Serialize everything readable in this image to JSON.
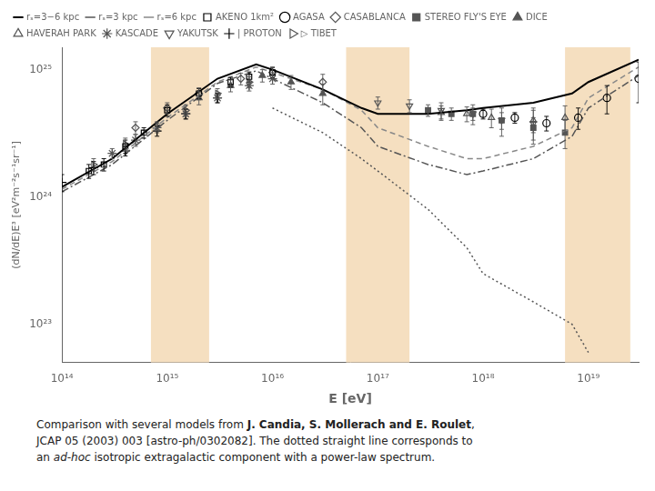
{
  "chart_data": {
    "type": "line",
    "xlabel": "E [eV]",
    "ylabel": "(dN/dE)E³ [eV²m⁻²s⁻¹sr⁻¹]",
    "log": true,
    "grid": false,
    "legend": "top",
    "xlim": [
      100000000000000.0,
      3e+19
    ],
    "ylim": [
      5e+22,
      1.5e+25
    ],
    "xticks": [
      {
        "value": 100000000000000.0,
        "label": "10¹⁴"
      },
      {
        "value": 1000000000000000.0,
        "label": "10¹⁵"
      },
      {
        "value": 1e+16,
        "label": "10¹⁶"
      },
      {
        "value": 1e+17,
        "label": "10¹⁷"
      },
      {
        "value": 1e+18,
        "label": "10¹⁸"
      },
      {
        "value": 1e+19,
        "label": "10¹⁹"
      }
    ],
    "yticks": [
      {
        "value": 1e+23,
        "label": "10²³"
      },
      {
        "value": 1e+24,
        "label": "10²⁴"
      },
      {
        "value": 1e+25,
        "label": "10²⁵"
      }
    ],
    "shaded_bands": [
      [
        700000000000000.0,
        2500000000000000.0
      ],
      [
        5e+16,
        2e+17
      ],
      [
        6e+18,
        2.5e+19
      ]
    ],
    "band_color": "#f5dfc0",
    "series": [
      {
        "name": "rₛ=3−6 kpc",
        "type": "line",
        "line_style": "solid",
        "color": "#000000",
        "x": [
          100000000000000.0,
          300000000000000.0,
          1000000000000000.0,
          3000000000000000.0,
          7000000000000000.0,
          1e+16,
          3e+16,
          7e+16,
          1e+17,
          3e+17,
          7e+17,
          1e+18,
          3e+18,
          7e+18,
          1e+19,
          3e+19
        ],
        "values": [
          1.2e+24,
          2e+24,
          4.5e+24,
          8.5e+24,
          1.1e+25,
          1e+25,
          7e+24,
          5e+24,
          4.5e+24,
          4.5e+24,
          4.8e+24,
          5e+24,
          5.5e+24,
          6.5e+24,
          8e+24,
          1.2e+25
        ]
      },
      {
        "name": "rₛ=3 kpc",
        "type": "line",
        "line_style": "dashdot",
        "color": "#555555",
        "x": [
          100000000000000.0,
          300000000000000.0,
          1000000000000000.0,
          3000000000000000.0,
          7000000000000000.0,
          1e+16,
          3e+16,
          7e+16,
          1e+17,
          3e+17,
          7e+17,
          1e+18,
          3e+18,
          7e+18,
          1e+19,
          3e+19
        ],
        "values": [
          1.1e+24,
          1.8e+24,
          4e+24,
          7.8e+24,
          9.8e+24,
          8.5e+24,
          5.5e+24,
          3.5e+24,
          2.5e+24,
          1.8e+24,
          1.5e+24,
          1.6e+24,
          2e+24,
          3e+24,
          5e+24,
          9e+24
        ]
      },
      {
        "name": "rₛ=6 kpc",
        "type": "line",
        "line_style": "dashed",
        "color": "#888888",
        "x": [
          100000000000000.0,
          300000000000000.0,
          1000000000000000.0,
          3000000000000000.0,
          7000000000000000.0,
          1e+16,
          3e+16,
          7e+16,
          1e+17,
          3e+17,
          7e+17,
          1e+18,
          3e+18,
          7e+18,
          1e+19,
          3e+19
        ],
        "values": [
          1.15e+24,
          1.9e+24,
          4.2e+24,
          8e+24,
          1.05e+25,
          9.5e+24,
          7e+24,
          4.8e+24,
          3.5e+24,
          2.5e+24,
          2e+24,
          2e+24,
          2.5e+24,
          3.5e+24,
          6e+24,
          1.05e+25
        ]
      },
      {
        "type": "line",
        "line_style": "dotted",
        "color": "#555555",
        "x": [
          1e+16,
          3e+16,
          7e+16,
          1e+17,
          3e+17,
          7e+17,
          1e+18,
          3e+18,
          7e+18,
          1e+19
        ],
        "values": [
          5e+24,
          3.2e+24,
          2e+24,
          1.6e+24,
          8e+23,
          4e+23,
          2.5e+23,
          1.5e+23,
          1e+23,
          6e+22
        ]
      },
      {
        "name": "AKENO 1km²",
        "type": "scatter",
        "marker": "square_open",
        "color": "#000000",
        "x": [
          180000000000000.0,
          250000000000000.0,
          400000000000000.0,
          600000000000000.0,
          1000000000000000.0,
          2000000000000000.0,
          4000000000000000.0,
          6000000000000000.0,
          1e+16
        ],
        "values": [
          1.6e+24,
          1.8e+24,
          2.5e+24,
          3.2e+24,
          4.8e+24,
          6.5e+24,
          8e+24,
          8.8e+24,
          9.5e+24
        ],
        "yerr": [
          2e+23,
          2e+23,
          3e+23,
          3e+23,
          5e+23,
          6e+23,
          7e+23,
          8e+23,
          9e+23
        ]
      },
      {
        "name": "AGASA",
        "type": "scatter",
        "marker": "circle_open",
        "color": "#000000",
        "x": [
          1e+18,
          2e+18,
          4e+18,
          8e+18,
          1.5e+19,
          3e+19
        ],
        "values": [
          4.5e+24,
          4.2e+24,
          3.8e+24,
          4.2e+24,
          6e+24,
          8.5e+24
        ],
        "yerr": [
          4e+23,
          4e+23,
          5e+23,
          8e+23,
          1.5e+24,
          3e+24
        ]
      },
      {
        "name": "CASABLANCA",
        "type": "scatter",
        "marker": "diamond_open",
        "color": "#555555",
        "x": [
          500000000000000.0,
          1000000000000000.0,
          2000000000000000.0,
          5000000000000000.0,
          1e+16,
          3e+16
        ],
        "values": [
          3.5e+24,
          5e+24,
          6.5e+24,
          8.5e+24,
          9.5e+24,
          8e+24
        ],
        "yerr": [
          4e+23,
          5e+23,
          7e+23,
          9e+23,
          1e+24,
          1.2e+24
        ]
      },
      {
        "name": "STEREO FLY'S EYE",
        "type": "scatter",
        "marker": "square",
        "color": "#555555",
        "x": [
          3e+17,
          5e+17,
          8e+17,
          1.5e+18,
          3e+18,
          6e+18
        ],
        "values": [
          4.8e+24,
          4.5e+24,
          4.5e+24,
          4e+24,
          3.5e+24,
          3.2e+24
        ],
        "yerr": [
          5e+23,
          5e+23,
          5e+23,
          6e+23,
          7e+23,
          8e+23
        ]
      },
      {
        "name": "DICE",
        "type": "scatter",
        "marker": "triangle",
        "color": "#555555",
        "x": [
          2000000000000000.0,
          4000000000000000.0,
          8000000000000000.0,
          1.5e+16,
          3e+16
        ],
        "values": [
          6e+24,
          7.5e+24,
          9e+24,
          8e+24,
          6.5e+24
        ],
        "yerr": [
          7e+23,
          8e+23,
          1e+24,
          1e+24,
          1.2e+24
        ]
      },
      {
        "name": "HAVERAH PARK",
        "type": "scatter",
        "marker": "triangle_open",
        "color": "#555555",
        "x": [
          4e+17,
          7e+17,
          1.2e+18,
          3e+18,
          6e+18
        ],
        "values": [
          4.6e+24,
          4.5e+24,
          4.2e+24,
          4e+24,
          4.2e+24
        ],
        "yerr": [
          6e+23,
          6e+23,
          7e+23,
          8e+23,
          1e+24
        ]
      },
      {
        "name": "KASCADE",
        "type": "scatter",
        "marker": "star",
        "color": "#555555",
        "x": [
          300000000000000.0,
          500000000000000.0,
          800000000000000.0,
          1500000000000000.0,
          3000000000000000.0,
          6000000000000000.0,
          1e+16
        ],
        "values": [
          2.2e+24,
          2.8e+24,
          3.5e+24,
          4.5e+24,
          6e+24,
          7.5e+24,
          8.5e+24
        ],
        "yerr": [
          2e+23,
          3e+23,
          3e+23,
          4e+23,
          5e+23,
          7e+23,
          8e+23
        ]
      },
      {
        "name": "YAKUTSK",
        "type": "scatter",
        "marker": "triangle_down_open",
        "color": "#555555",
        "x": [
          1e+17,
          2e+17,
          4e+17,
          8e+17,
          1.5e+18,
          3e+18
        ],
        "values": [
          5.5e+24,
          5.2e+24,
          4.8e+24,
          4.5e+24,
          4e+24,
          3.8e+24
        ],
        "yerr": [
          6e+23,
          6e+23,
          7e+23,
          8e+23,
          1e+24,
          1.2e+24
        ]
      },
      {
        "name": "| PROTON",
        "type": "scatter",
        "marker": "plus",
        "color": "#000000",
        "x": [
          100000000000000.0,
          200000000000000.0,
          400000000000000.0,
          800000000000000.0,
          1500000000000000.0,
          3000000000000000.0
        ],
        "values": [
          1.3e+24,
          1.7e+24,
          2.3e+24,
          3.3e+24,
          4.5e+24,
          6e+24
        ],
        "yerr": [
          2e+23,
          2e+23,
          2e+23,
          3e+23,
          4e+23,
          5e+23
        ]
      },
      {
        "name": "▷ TIBET",
        "type": "scatter",
        "marker": "triangle_right_open",
        "color": "#555555",
        "x": [
          200000000000000.0,
          400000000000000.0,
          800000000000000.0,
          1500000000000000.0,
          3000000000000000.0,
          6000000000000000.0
        ],
        "values": [
          1.8e+24,
          2.6e+24,
          3.6e+24,
          4.8e+24,
          6.5e+24,
          8e+24
        ],
        "yerr": [
          2e+23,
          3e+23,
          3e+23,
          5e+23,
          6e+23,
          8e+23
        ]
      }
    ],
    "caption": [
      [
        {
          "text": "Comparison with several models from "
        },
        {
          "text": "J. Candia, S. Mollerach and E. Roulet",
          "bold": true
        },
        {
          "text": ","
        }
      ],
      [
        {
          "text": "JCAP 05 (2003) 003 [astro-ph/0302082]. The dotted straight line corresponds to"
        }
      ],
      [
        {
          "text": "an "
        },
        {
          "text": "ad-hoc",
          "italic": true
        },
        {
          "text": " isotropic extragalactic component with a power-law spectrum."
        }
      ]
    ]
  }
}
